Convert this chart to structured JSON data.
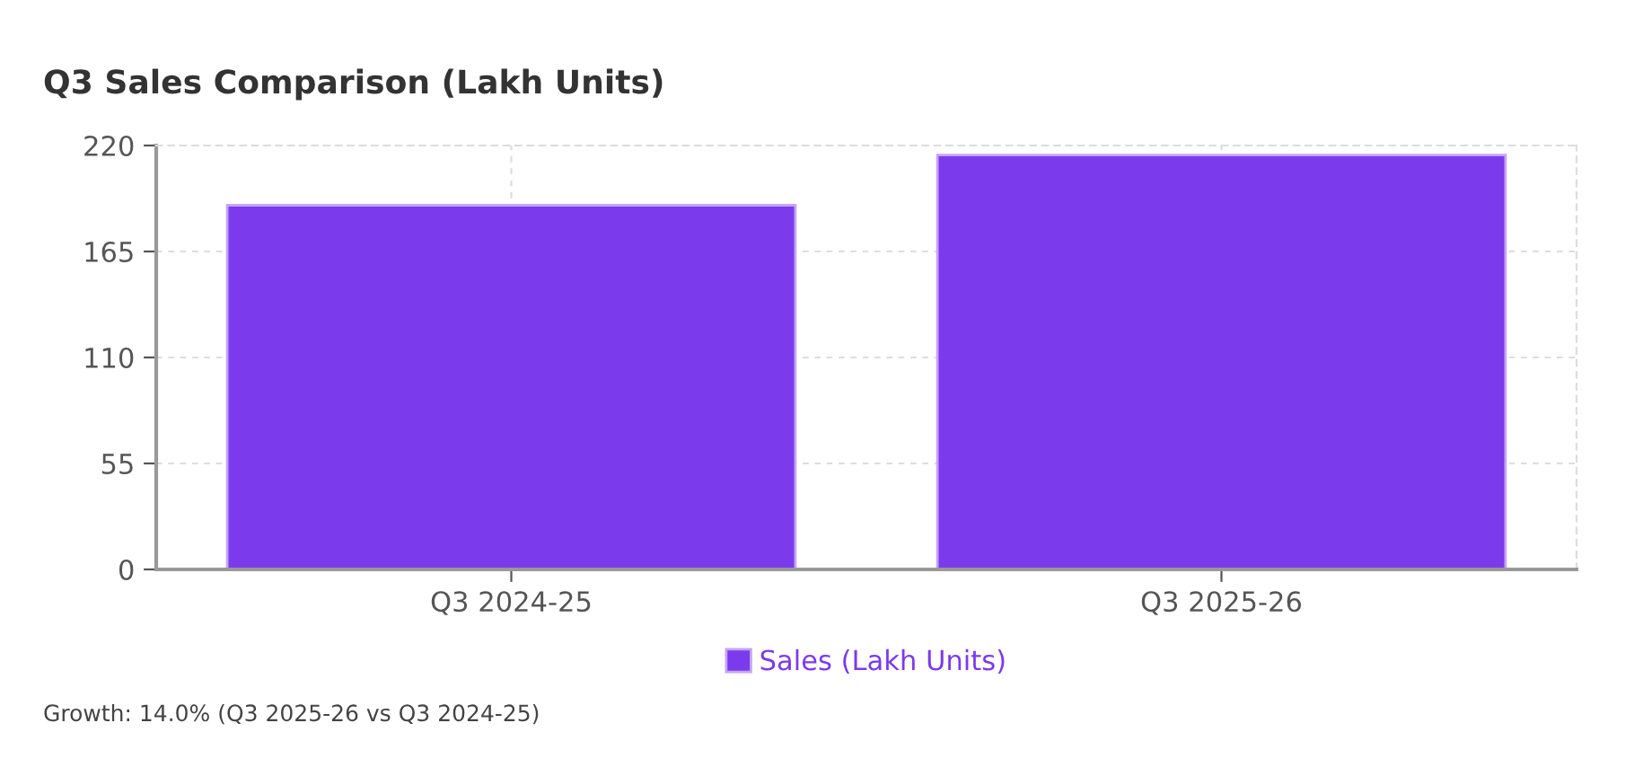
{
  "chart_data": {
    "type": "bar",
    "title": "Q3 Sales Comparison (Lakh Units)",
    "categories": [
      "Q3 2024-25",
      "Q3 2025-26"
    ],
    "series": [
      {
        "name": "Sales (Lakh Units)",
        "color": "#7c3aed",
        "values": [
          189,
          215
        ]
      }
    ],
    "ylim": [
      0,
      220
    ],
    "yticks": [
      0,
      55,
      110,
      165,
      220
    ],
    "grid": true,
    "legend": "bottom",
    "annotations": [
      "Growth: 14.0% (Q3 2025-26 vs Q3 2024-25)"
    ]
  }
}
